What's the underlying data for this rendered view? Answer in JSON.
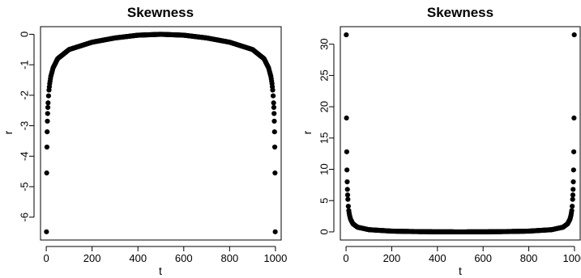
{
  "chart_data": [
    {
      "type": "scatter",
      "title": "Skewness",
      "xlabel": "t",
      "ylabel": "r",
      "xlim": [
        -25,
        1025
      ],
      "ylim": [
        -6.75,
        0.25
      ],
      "xticks": [
        0,
        200,
        400,
        600,
        800,
        1000
      ],
      "yticks": [
        0,
        -1,
        -2,
        -3,
        -4,
        -5,
        -6
      ],
      "grid": false,
      "legend": "none",
      "point_color": "#000000",
      "n_points": 999,
      "series": [
        {
          "x": [
            1,
            2,
            3,
            4,
            5,
            6,
            7,
            8,
            10,
            12,
            15,
            20,
            30,
            50,
            100,
            200,
            300,
            400,
            500,
            600,
            700,
            800,
            900,
            950,
            970,
            980,
            985,
            988,
            990,
            992,
            993,
            994,
            995,
            996,
            997,
            998,
            999
          ],
          "y": [
            -6.48,
            -4.55,
            -3.7,
            -3.2,
            -2.85,
            -2.6,
            -2.4,
            -2.25,
            -2.02,
            -1.83,
            -1.62,
            -1.38,
            -1.1,
            -0.8,
            -0.5,
            -0.26,
            -0.12,
            -0.03,
            0.0,
            -0.03,
            -0.12,
            -0.26,
            -0.5,
            -0.8,
            -1.1,
            -1.38,
            -1.62,
            -1.83,
            -2.02,
            -2.25,
            -2.4,
            -2.6,
            -2.85,
            -3.2,
            -3.7,
            -4.55,
            -6.48
          ]
        }
      ]
    },
    {
      "type": "scatter",
      "title": "Skewness",
      "xlabel": "t",
      "ylabel": "r",
      "xlim": [
        -25,
        1025
      ],
      "ylim": [
        -1.3,
        32.8
      ],
      "xticks": [
        0,
        200,
        400,
        600,
        800,
        1000
      ],
      "yticks": [
        0,
        5,
        10,
        15,
        20,
        25,
        30
      ],
      "grid": false,
      "legend": "none",
      "point_color": "#000000",
      "n_points": 999,
      "series": [
        {
          "x": [
            1,
            2,
            3,
            4,
            5,
            6,
            7,
            8,
            10,
            12,
            15,
            20,
            30,
            50,
            100,
            200,
            300,
            400,
            500,
            600,
            700,
            800,
            900,
            950,
            970,
            980,
            985,
            988,
            990,
            992,
            993,
            994,
            995,
            996,
            997,
            998,
            999
          ],
          "y": [
            31.5,
            18.2,
            12.8,
            9.9,
            8.0,
            6.8,
            5.9,
            5.2,
            4.1,
            3.4,
            2.7,
            2.0,
            1.3,
            0.75,
            0.35,
            0.12,
            0.05,
            0.01,
            0.0,
            0.01,
            0.05,
            0.12,
            0.35,
            0.75,
            1.3,
            2.0,
            2.7,
            3.4,
            4.1,
            5.2,
            5.9,
            6.8,
            8.0,
            9.9,
            12.8,
            18.2,
            31.5
          ]
        }
      ]
    }
  ]
}
